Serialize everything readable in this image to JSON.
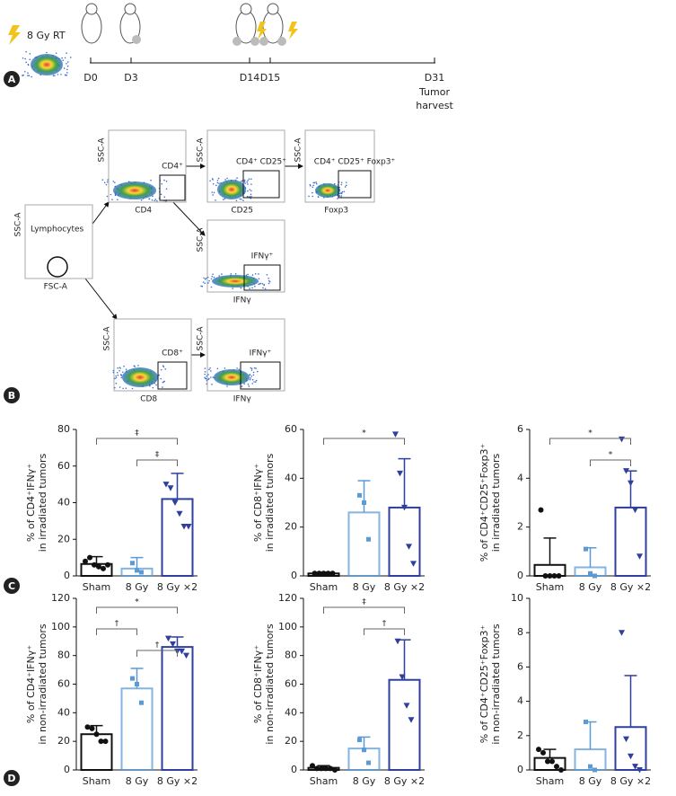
{
  "legend_rt": "8 Gy RT",
  "panel_labels": [
    "A",
    "B",
    "C",
    "D"
  ],
  "timeline": {
    "days": [
      "D0",
      "D3",
      "D14",
      "D15",
      "D31"
    ],
    "harvest": [
      "Tumor",
      "harvest"
    ]
  },
  "flow": {
    "plots": [
      {
        "x_label": "FSC-A",
        "y_label": "SSC-A",
        "gate": "Lymphocytes"
      },
      {
        "x_label": "CD4",
        "y_label": "SSC-A",
        "gate": "CD4⁺"
      },
      {
        "x_label": "CD25",
        "y_label": "SSC-A",
        "gate": "CD4⁺ CD25⁺"
      },
      {
        "x_label": "Foxp3",
        "y_label": "SSC-A",
        "gate": "CD4⁺ CD25⁺ Foxp3⁺"
      },
      {
        "x_label": "IFNγ",
        "y_label": "SSC-A",
        "gate": "IFNγ⁺"
      },
      {
        "x_label": "CD8",
        "y_label": "SSC-A",
        "gate": "CD8⁺"
      },
      {
        "x_label": "IFNγ",
        "y_label": "SSC-A",
        "gate": "IFNγ⁺"
      }
    ]
  },
  "chart_data": [
    {
      "type": "bar",
      "y_label": [
        "% of CD4⁺IFNγ⁺",
        "in irradiated tumors"
      ],
      "categories": [
        "Sham",
        "8 Gy",
        "8 Gy ×2"
      ],
      "values": [
        6.5,
        4,
        42
      ],
      "errors": [
        4,
        6,
        14
      ],
      "points": [
        [
          8,
          10,
          6,
          5,
          4,
          6
        ],
        [
          7,
          3,
          2
        ],
        [
          50,
          48,
          40,
          34,
          27,
          27
        ]
      ],
      "colors": [
        "#111111",
        "#5b9bd5",
        "#2e3f9e"
      ],
      "markers": [
        "circle",
        "square",
        "triangle"
      ],
      "ylim": [
        0,
        80
      ],
      "yticks": [
        0,
        20,
        40,
        60,
        80
      ],
      "significance": [
        {
          "pair": [
            "Sham",
            "8 Gy ×2"
          ],
          "label": "‡"
        },
        {
          "pair": [
            "8 Gy",
            "8 Gy ×2"
          ],
          "label": "‡"
        }
      ]
    },
    {
      "type": "bar",
      "y_label": [
        "% of CD8⁺IFNγ⁺",
        "in irradiated tumors"
      ],
      "categories": [
        "Sham",
        "8 Gy",
        "8 Gy ×2"
      ],
      "values": [
        1,
        26,
        28
      ],
      "errors": [
        0.5,
        13,
        20
      ],
      "points": [
        [
          1,
          1,
          1,
          1,
          1
        ],
        [
          33,
          30,
          15
        ],
        [
          58,
          42,
          28,
          12,
          5
        ]
      ],
      "colors": [
        "#111111",
        "#5b9bd5",
        "#2e3f9e"
      ],
      "markers": [
        "circle",
        "square",
        "triangle"
      ],
      "ylim": [
        0,
        60
      ],
      "yticks": [
        0,
        20,
        40,
        60
      ],
      "significance": [
        {
          "pair": [
            "Sham",
            "8 Gy ×2"
          ],
          "label": "*"
        }
      ]
    },
    {
      "type": "bar",
      "y_label": [
        "% of CD4⁺CD25⁺Foxp3⁺",
        "in irradiated tumors"
      ],
      "categories": [
        "Sham",
        "8 Gy",
        "8 Gy ×2"
      ],
      "values": [
        0.45,
        0.35,
        2.8
      ],
      "errors": [
        1.1,
        0.8,
        1.5
      ],
      "points": [
        [
          2.7,
          0,
          0,
          0,
          0
        ],
        [
          1.1,
          0.1,
          0
        ],
        [
          5.6,
          4.3,
          3.8,
          2.7,
          0.8
        ]
      ],
      "colors": [
        "#111111",
        "#5b9bd5",
        "#2e3f9e"
      ],
      "markers": [
        "circle",
        "square",
        "triangle"
      ],
      "ylim": [
        0,
        6
      ],
      "yticks": [
        0,
        2,
        4,
        6
      ],
      "significance": [
        {
          "pair": [
            "Sham",
            "8 Gy ×2"
          ],
          "label": "*"
        },
        {
          "pair": [
            "8 Gy",
            "8 Gy ×2"
          ],
          "label": "*"
        }
      ]
    },
    {
      "type": "bar",
      "y_label": [
        "% of CD4⁺IFNγ⁺",
        "in non-irradiated tumors"
      ],
      "categories": [
        "Sham",
        "8 Gy",
        "8 Gy ×2"
      ],
      "values": [
        25,
        57,
        86
      ],
      "errors": [
        6,
        14,
        7
      ],
      "points": [
        [
          30,
          29,
          25,
          20,
          20
        ],
        [
          64,
          60,
          47
        ],
        [
          92,
          88,
          83,
          83,
          80
        ]
      ],
      "colors": [
        "#111111",
        "#5b9bd5",
        "#2e3f9e"
      ],
      "markers": [
        "circle",
        "square",
        "triangle"
      ],
      "ylim": [
        0,
        120
      ],
      "yticks": [
        0,
        20,
        40,
        60,
        80,
        100,
        120
      ],
      "significance": [
        {
          "pair": [
            "Sham",
            "8 Gy ×2"
          ],
          "label": "*"
        },
        {
          "pair": [
            "Sham",
            "8 Gy"
          ],
          "label": "†"
        },
        {
          "pair": [
            "8 Gy",
            "8 Gy ×2"
          ],
          "label": "†"
        }
      ]
    },
    {
      "type": "bar",
      "y_label": [
        "% of CD8⁺IFNγ⁺",
        "in non-irradiated tumors"
      ],
      "categories": [
        "Sham",
        "8 Gy",
        "8 Gy ×2"
      ],
      "values": [
        1.5,
        15,
        63
      ],
      "errors": [
        1.5,
        8,
        28
      ],
      "points": [
        [
          3,
          1,
          1,
          1,
          1,
          0
        ],
        [
          21,
          14,
          5
        ],
        [
          90,
          65,
          45,
          35
        ]
      ],
      "colors": [
        "#111111",
        "#5b9bd5",
        "#2e3f9e"
      ],
      "markers": [
        "circle",
        "square",
        "triangle"
      ],
      "ylim": [
        0,
        120
      ],
      "yticks": [
        0,
        20,
        40,
        60,
        80,
        100,
        120
      ],
      "significance": [
        {
          "pair": [
            "Sham",
            "8 Gy ×2"
          ],
          "label": "‡"
        },
        {
          "pair": [
            "8 Gy",
            "8 Gy ×2"
          ],
          "label": "†"
        }
      ]
    },
    {
      "type": "bar",
      "y_label": [
        "% of CD4⁺CD25⁺Foxp3⁺",
        "in non-irradiated tumors"
      ],
      "categories": [
        "Sham",
        "8 Gy",
        "8 Gy ×2"
      ],
      "values": [
        0.7,
        1.2,
        2.5
      ],
      "errors": [
        0.5,
        1.6,
        3
      ],
      "points": [
        [
          1.2,
          1,
          0.5,
          0.5,
          0.2,
          0
        ],
        [
          2.8,
          0.2,
          0
        ],
        [
          8,
          1.8,
          0.8,
          0.2,
          0
        ]
      ],
      "colors": [
        "#111111",
        "#5b9bd5",
        "#2e3f9e"
      ],
      "markers": [
        "circle",
        "square",
        "triangle"
      ],
      "ylim": [
        0,
        10
      ],
      "yticks": [
        0,
        2,
        4,
        6,
        8,
        10
      ],
      "significance": []
    }
  ]
}
